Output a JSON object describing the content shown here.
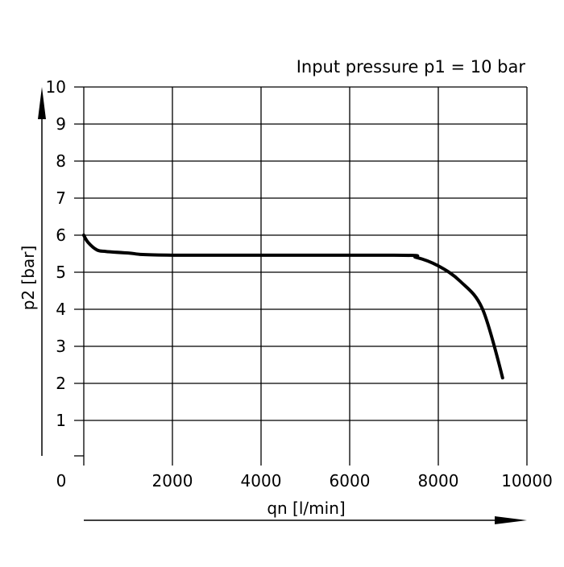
{
  "chart_data": {
    "type": "line",
    "title": "Input pressure p1 = 10 bar",
    "xlabel": "qn  [l/min]",
    "ylabel": "p2  [bar]",
    "xlim": [
      0,
      10000
    ],
    "ylim": [
      0,
      10
    ],
    "grid": true,
    "x_ticks": [
      "0",
      "2000",
      "4000",
      "6000",
      "8000",
      "10000"
    ],
    "y_ticks": [
      "1",
      "2",
      "3",
      "4",
      "5",
      "6",
      "7",
      "8",
      "9",
      "10"
    ],
    "series": [
      {
        "color": "#000000",
        "x": [
          0,
          100,
          300,
          500,
          1000,
          2000,
          7000,
          7500,
          8000,
          8500,
          9000,
          9450
        ],
        "y": [
          6.0,
          5.8,
          5.6,
          5.56,
          5.52,
          5.46,
          5.46,
          5.4,
          5.17,
          4.75,
          4.0,
          2.15
        ]
      }
    ]
  }
}
